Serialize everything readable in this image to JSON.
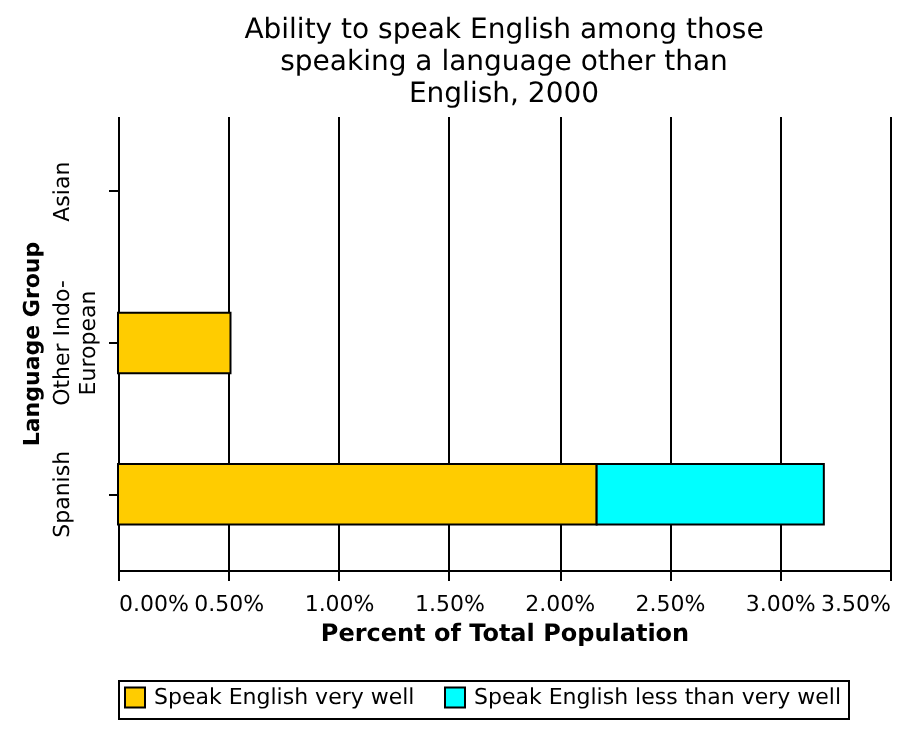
{
  "chart_data": {
    "type": "bar",
    "orientation": "horizontal",
    "stacked": true,
    "title": "Ability to speak English among those speaking a language other than English, 2000",
    "xlabel": "Percent of Total Population",
    "ylabel": "Language Group",
    "categories": [
      "Asian",
      "Other Indo-European",
      "Spanish"
    ],
    "series": [
      {
        "name": "Speak English very well",
        "color": "#ffcc00",
        "values": [
          null,
          0.51,
          2.17
        ]
      },
      {
        "name": "Speak English less than very well",
        "color": "#00ffff",
        "values": [
          null,
          null,
          1.03
        ]
      }
    ],
    "xlim": [
      0,
      3.5
    ],
    "xticks": [
      {
        "value": 0,
        "label": "0.00%"
      },
      {
        "value": 0.5,
        "label": "0.50%"
      },
      {
        "value": 1,
        "label": "1.00%"
      },
      {
        "value": 1.5,
        "label": "1.50%"
      },
      {
        "value": 2,
        "label": "2.00%"
      },
      {
        "value": 2.5,
        "label": "2.50%"
      },
      {
        "value": 3,
        "label": "3.00%"
      },
      {
        "value": 3.5,
        "label": "3.50%"
      }
    ],
    "grid": "x",
    "legend": "bottom"
  }
}
